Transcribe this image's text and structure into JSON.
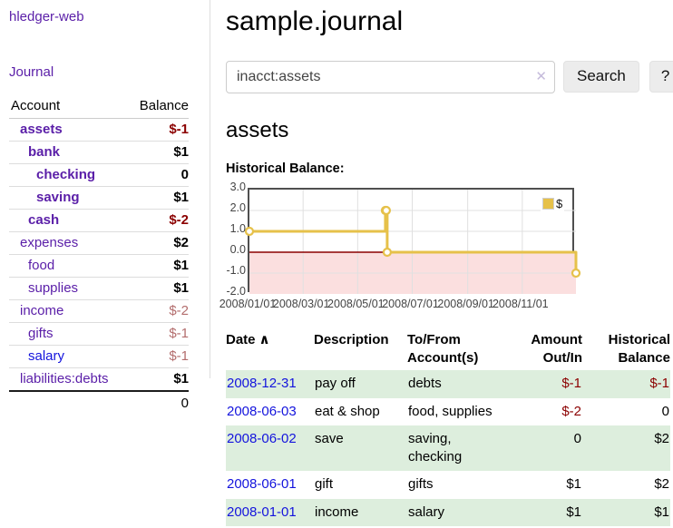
{
  "app": {
    "title": "hledger-web",
    "nav_journal": "Journal"
  },
  "sidebar": {
    "header_account": "Account",
    "header_balance": "Balance",
    "accounts": [
      {
        "name": "assets",
        "indent": 0,
        "bold": true,
        "balance": "$-1"
      },
      {
        "name": "bank",
        "indent": 1,
        "bold": true,
        "balance": "$1"
      },
      {
        "name": "checking",
        "indent": 2,
        "bold": true,
        "balance": "0"
      },
      {
        "name": "saving",
        "indent": 2,
        "bold": true,
        "balance": "$1"
      },
      {
        "name": "cash",
        "indent": 1,
        "bold": true,
        "balance": "$-2"
      },
      {
        "name": "expenses",
        "indent": 0,
        "bold": false,
        "balance": "$2"
      },
      {
        "name": "food",
        "indent": 1,
        "bold": false,
        "balance": "$1"
      },
      {
        "name": "supplies",
        "indent": 1,
        "bold": false,
        "balance": "$1"
      },
      {
        "name": "income",
        "indent": 0,
        "bold": false,
        "balance": "$-2"
      },
      {
        "name": "gifts",
        "indent": 1,
        "bold": false,
        "balance": "$-1"
      },
      {
        "name": "salary",
        "indent": 1,
        "bold": false,
        "balance": "$-1",
        "unvisited": true
      },
      {
        "name": "liabilities:debts",
        "indent": 0,
        "bold": false,
        "balance": "$1"
      }
    ],
    "total": "0"
  },
  "main": {
    "title": "sample.journal",
    "account_heading": "assets"
  },
  "search": {
    "value": "inacct:assets",
    "clear_icon": "✕",
    "button_label": "Search",
    "help_label": "?"
  },
  "chart_data": {
    "type": "line",
    "title": "Historical Balance:",
    "series": [
      {
        "name": "$",
        "color": "#e6c14a",
        "step": true,
        "points": [
          [
            "2008-01-01",
            1
          ],
          [
            "2008-06-01",
            2
          ],
          [
            "2008-06-02",
            2
          ],
          [
            "2008-06-03",
            0
          ],
          [
            "2008-12-31",
            -1
          ]
        ]
      }
    ],
    "ylim": [
      -2,
      3
    ],
    "y_ticks": [
      {
        "value": 3,
        "label": "3.0"
      },
      {
        "value": 2,
        "label": "2.0"
      },
      {
        "value": 1,
        "label": "1.0"
      },
      {
        "value": 0,
        "label": "0.0"
      },
      {
        "value": -1,
        "label": "-1.0"
      },
      {
        "value": -2,
        "label": "-2.0"
      }
    ],
    "x_range": [
      "2008-01-01",
      "2008-12-31"
    ],
    "x_ticks": [
      {
        "date": "2008-01-01",
        "label": "2008/01/01"
      },
      {
        "date": "2008-03-01",
        "label": "2008/03/01"
      },
      {
        "date": "2008-05-01",
        "label": "2008/05/01"
      },
      {
        "date": "2008-07-01",
        "label": "2008/07/01"
      },
      {
        "date": "2008-09-01",
        "label": "2008/09/01"
      },
      {
        "date": "2008-11-01",
        "label": "2008/11/01"
      }
    ],
    "grid": true,
    "grid_color": "#e0e0e0",
    "negative_region_color": "#fbdfdf",
    "zero_line_color": "#8b0000",
    "legend_position": "top-right"
  },
  "register": {
    "headers": {
      "date": "Date",
      "sort_icon": "∧",
      "description": "Description",
      "tofrom": "To/From\nAccount(s)",
      "amount": "Amount\nOut/In",
      "balance": "Historical\nBalance"
    },
    "rows": [
      {
        "date": "2008-12-31",
        "description": "pay off",
        "tofrom": "debts",
        "amount": "$-1",
        "balance": "$-1"
      },
      {
        "date": "2008-06-03",
        "description": "eat & shop",
        "tofrom": "food, supplies",
        "amount": "$-2",
        "balance": "0"
      },
      {
        "date": "2008-06-02",
        "description": "save",
        "tofrom": "saving,\nchecking",
        "amount": "0",
        "balance": "$2"
      },
      {
        "date": "2008-06-01",
        "description": "gift",
        "tofrom": "gifts",
        "amount": "$1",
        "balance": "$2"
      },
      {
        "date": "2008-01-01",
        "description": "income",
        "tofrom": "salary",
        "amount": "$1",
        "balance": "$1"
      }
    ]
  }
}
